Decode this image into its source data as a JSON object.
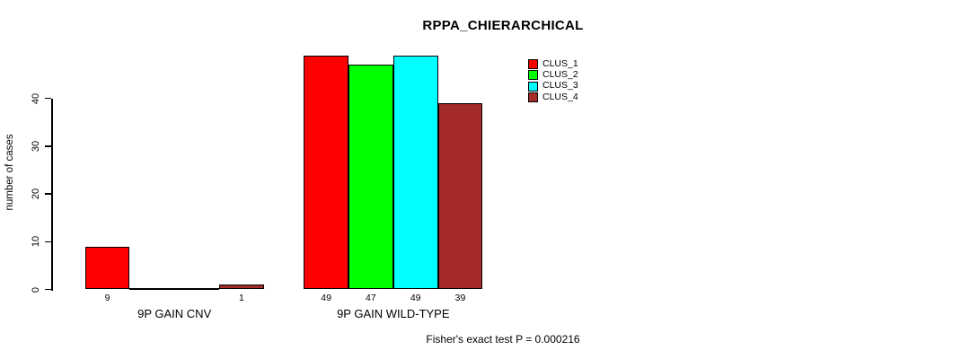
{
  "chart_data": {
    "type": "bar",
    "title": "RPPA_CHIERARCHICAL",
    "ylabel": "number of cases",
    "xlabel": "",
    "ylim": [
      0,
      40
    ],
    "yticks": [
      0,
      10,
      20,
      30,
      40
    ],
    "grid": false,
    "categories": [
      "9P GAIN CNV",
      "9P GAIN WILD-TYPE"
    ],
    "series": [
      {
        "name": "CLUS_1",
        "color": "#ff0000",
        "values": [
          9,
          49
        ]
      },
      {
        "name": "CLUS_2",
        "color": "#00ff00",
        "values": [
          0,
          47
        ]
      },
      {
        "name": "CLUS_3",
        "color": "#00ffff",
        "values": [
          0,
          49
        ]
      },
      {
        "name": "CLUS_4",
        "color": "#a52a2a",
        "values": [
          1,
          39
        ]
      }
    ],
    "bar_value_labels": [
      [
        "9",
        "",
        "",
        "1"
      ],
      [
        "49",
        "47",
        "49",
        "39"
      ]
    ],
    "legend_position": "top-right",
    "annotation": "Fisher's exact test P = 0.000216",
    "axis_color": "#000000"
  }
}
